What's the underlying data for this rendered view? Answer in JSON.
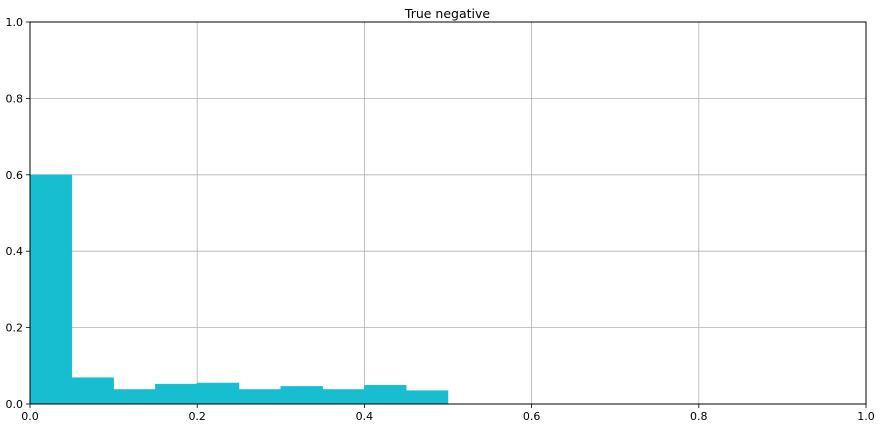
{
  "chart_data": {
    "type": "bar",
    "title": "True negative",
    "xlabel": "",
    "ylabel": "",
    "xlim": [
      0,
      1
    ],
    "ylim": [
      0,
      1
    ],
    "grid": true,
    "bar_color": "#17becf",
    "x_ticks": [
      {
        "value": 0,
        "label": "0.0"
      },
      {
        "value": 0.2,
        "label": "0.2"
      },
      {
        "value": 0.4,
        "label": "0.4"
      },
      {
        "value": 0.6,
        "label": "0.6"
      },
      {
        "value": 0.8,
        "label": "0.8"
      },
      {
        "value": 1,
        "label": "1.0"
      }
    ],
    "y_ticks": [
      {
        "value": 0,
        "label": "0.0"
      },
      {
        "value": 0.2,
        "label": "0.2"
      },
      {
        "value": 0.4,
        "label": "0.4"
      },
      {
        "value": 0.6,
        "label": "0.6"
      },
      {
        "value": 0.8,
        "label": "0.8"
      },
      {
        "value": 1,
        "label": "1.0"
      }
    ],
    "bins": [
      {
        "x0": 0.0,
        "x1": 0.05,
        "value": 0.6
      },
      {
        "x0": 0.05,
        "x1": 0.1,
        "value": 0.069
      },
      {
        "x0": 0.1,
        "x1": 0.15,
        "value": 0.038
      },
      {
        "x0": 0.15,
        "x1": 0.2,
        "value": 0.052
      },
      {
        "x0": 0.2,
        "x1": 0.25,
        "value": 0.055
      },
      {
        "x0": 0.25,
        "x1": 0.3,
        "value": 0.038
      },
      {
        "x0": 0.3,
        "x1": 0.35,
        "value": 0.046
      },
      {
        "x0": 0.35,
        "x1": 0.4,
        "value": 0.038
      },
      {
        "x0": 0.4,
        "x1": 0.45,
        "value": 0.049
      },
      {
        "x0": 0.45,
        "x1": 0.5,
        "value": 0.035
      }
    ]
  }
}
